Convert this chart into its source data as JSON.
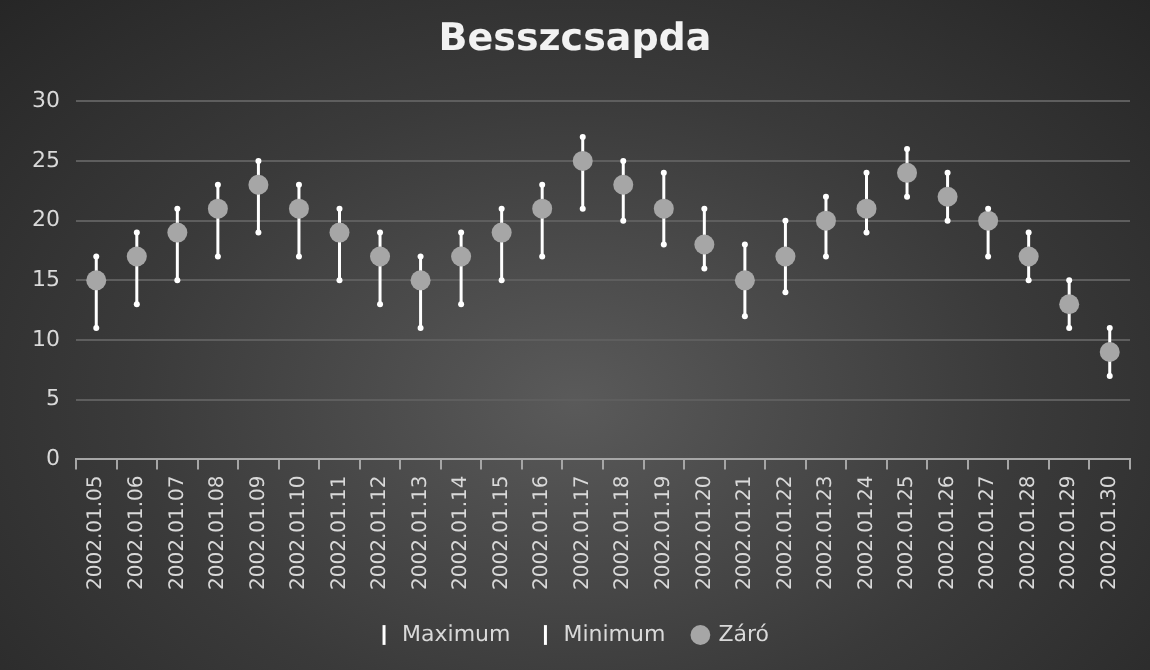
{
  "chart_data": {
    "type": "scatter",
    "title": "Besszcsapda",
    "categories": [
      "2002.01.05",
      "2002.01.06",
      "2002.01.07",
      "2002.01.08",
      "2002.01.09",
      "2002.01.10",
      "2002.01.11",
      "2002.01.12",
      "2002.01.13",
      "2002.01.14",
      "2002.01.15",
      "2002.01.16",
      "2002.01.17",
      "2002.01.18",
      "2002.01.19",
      "2002.01.20",
      "2002.01.21",
      "2002.01.22",
      "2002.01.23",
      "2002.01.24",
      "2002.01.25",
      "2002.01.26",
      "2002.01.27",
      "2002.01.28",
      "2002.01.29",
      "2002.01.30"
    ],
    "series": [
      {
        "name": "Maximum",
        "color": "#ffffff",
        "values": [
          17,
          19,
          21,
          23,
          25,
          23,
          21,
          19,
          17,
          19,
          21,
          23,
          27,
          25,
          24,
          21,
          18,
          20,
          22,
          24,
          26,
          24,
          21,
          19,
          15,
          11
        ]
      },
      {
        "name": "Minimum",
        "color": "#ffffff",
        "values": [
          11,
          13,
          15,
          17,
          19,
          17,
          15,
          13,
          11,
          13,
          15,
          17,
          21,
          20,
          18,
          16,
          12,
          14,
          17,
          19,
          22,
          20,
          17,
          15,
          11,
          7
        ]
      },
      {
        "name": "Záró",
        "color": "#a6a6a6",
        "marker": "circle",
        "values": [
          15,
          17,
          19,
          21,
          23,
          21,
          19,
          17,
          15,
          17,
          19,
          21,
          25,
          23,
          21,
          18,
          15,
          17,
          20,
          21,
          24,
          22,
          20,
          17,
          13,
          9
        ]
      }
    ],
    "ylim": [
      0,
      30
    ],
    "yticks": [
      0,
      5,
      10,
      15,
      20,
      25,
      30
    ],
    "grid": "y",
    "legend": "bottom"
  }
}
